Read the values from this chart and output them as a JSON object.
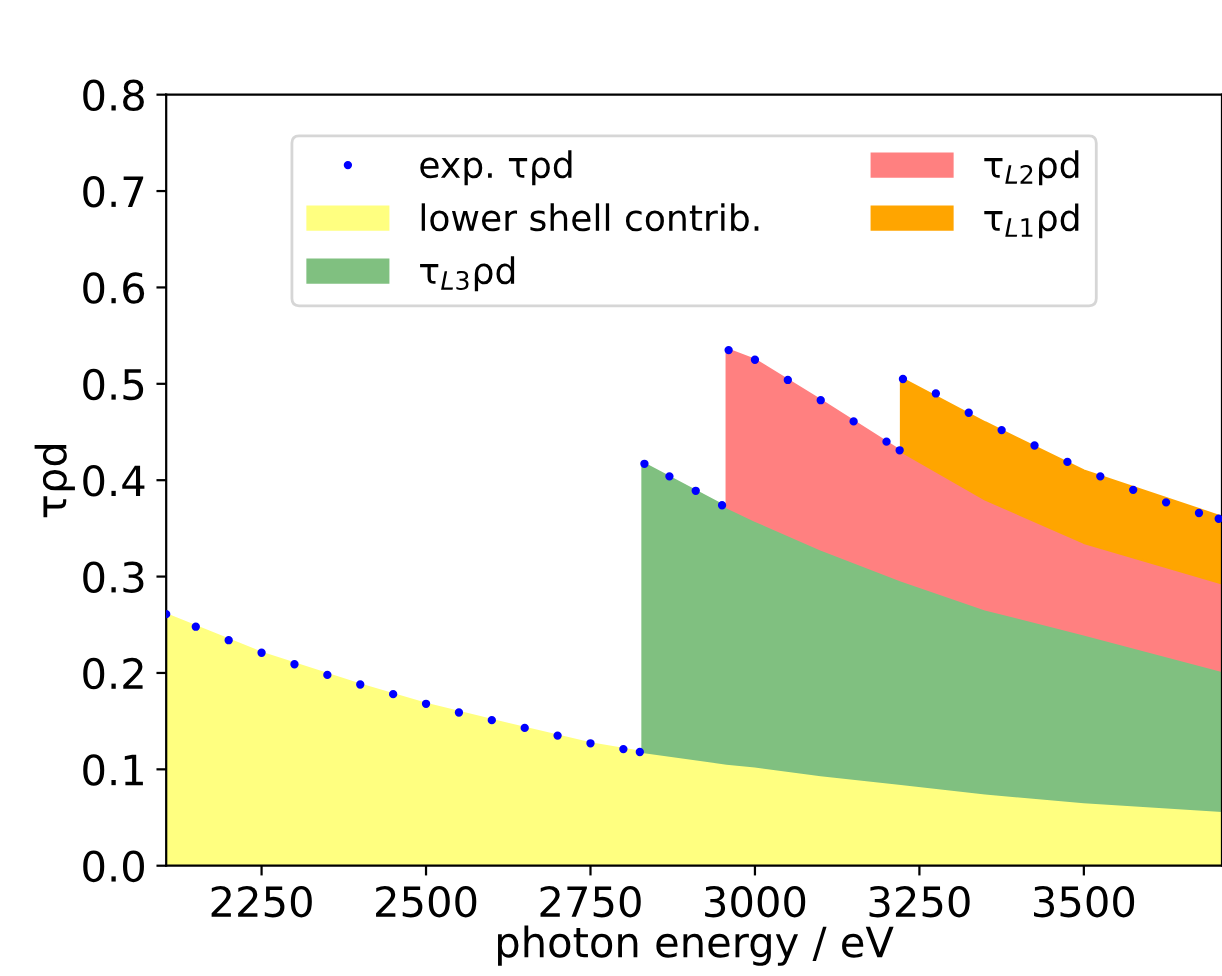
{
  "chart_data": {
    "type": "area",
    "stacked": true,
    "xlabel": "photon energy / eV",
    "ylabel": "τρd",
    "x": [
      2105,
      2250,
      2400,
      2500,
      2650,
      2750,
      2829,
      2829,
      2957,
      2957,
      3000,
      3100,
      3222,
      3222,
      3350,
      3500,
      3710
    ],
    "series": [
      {
        "name": "exp. τρd",
        "type": "scatter",
        "color": "#0000ff",
        "marker": "circle",
        "x": [
          2105,
          2150,
          2200,
          2250,
          2300,
          2350,
          2400,
          2450,
          2500,
          2550,
          2600,
          2650,
          2700,
          2750,
          2800,
          2825,
          2832,
          2870,
          2910,
          2950,
          2960,
          3000,
          3050,
          3100,
          3150,
          3200,
          3220,
          3225,
          3275,
          3325,
          3375,
          3425,
          3475,
          3525,
          3575,
          3625,
          3675,
          3705
        ],
        "values": [
          0.261,
          0.248,
          0.234,
          0.221,
          0.209,
          0.198,
          0.188,
          0.178,
          0.168,
          0.159,
          0.151,
          0.143,
          0.135,
          0.127,
          0.121,
          0.118,
          0.417,
          0.404,
          0.389,
          0.374,
          0.535,
          0.525,
          0.504,
          0.483,
          0.461,
          0.44,
          0.431,
          0.505,
          0.49,
          0.47,
          0.452,
          0.436,
          0.419,
          0.404,
          0.39,
          0.377,
          0.366,
          0.36
        ]
      },
      {
        "name": "lower shell contrib.",
        "color": "#ffff80",
        "values": [
          0.261,
          0.221,
          0.188,
          0.168,
          0.143,
          0.127,
          0.118,
          0.118,
          0.106,
          0.106,
          0.103,
          0.094,
          0.085,
          0.085,
          0.075,
          0.066,
          0.057
        ]
      },
      {
        "name": "τ$_{L3}$ρd",
        "color": "#80c080",
        "values": [
          null,
          null,
          null,
          null,
          null,
          null,
          null,
          0.3,
          0.266,
          0.266,
          0.255,
          0.234,
          0.211,
          0.211,
          0.191,
          0.174,
          0.145
        ]
      },
      {
        "name": "τ$_{L2}$ρd",
        "color": "#ff8080",
        "values": [
          null,
          null,
          null,
          null,
          null,
          null,
          null,
          null,
          null,
          0.164,
          0.167,
          0.155,
          0.134,
          0.134,
          0.114,
          0.095,
          0.091
        ]
      },
      {
        "name": "τ$_{L1}$ρd",
        "color": "#ffa500",
        "values": [
          null,
          null,
          null,
          null,
          null,
          null,
          null,
          null,
          null,
          null,
          null,
          null,
          null,
          0.076,
          0.08,
          0.075,
          0.069
        ]
      }
    ],
    "xlim": [
      2105,
      3710
    ],
    "xticks": [
      2250,
      2500,
      2750,
      3000,
      3250,
      3500
    ],
    "ylim": [
      0,
      0.8
    ],
    "yticks": [
      {
        "value": 0,
        "label": "0.0"
      },
      0.1,
      0.2,
      0.3,
      0.4,
      0.5,
      0.6,
      0.7,
      0.8
    ],
    "legend": "top",
    "grid": false
  }
}
